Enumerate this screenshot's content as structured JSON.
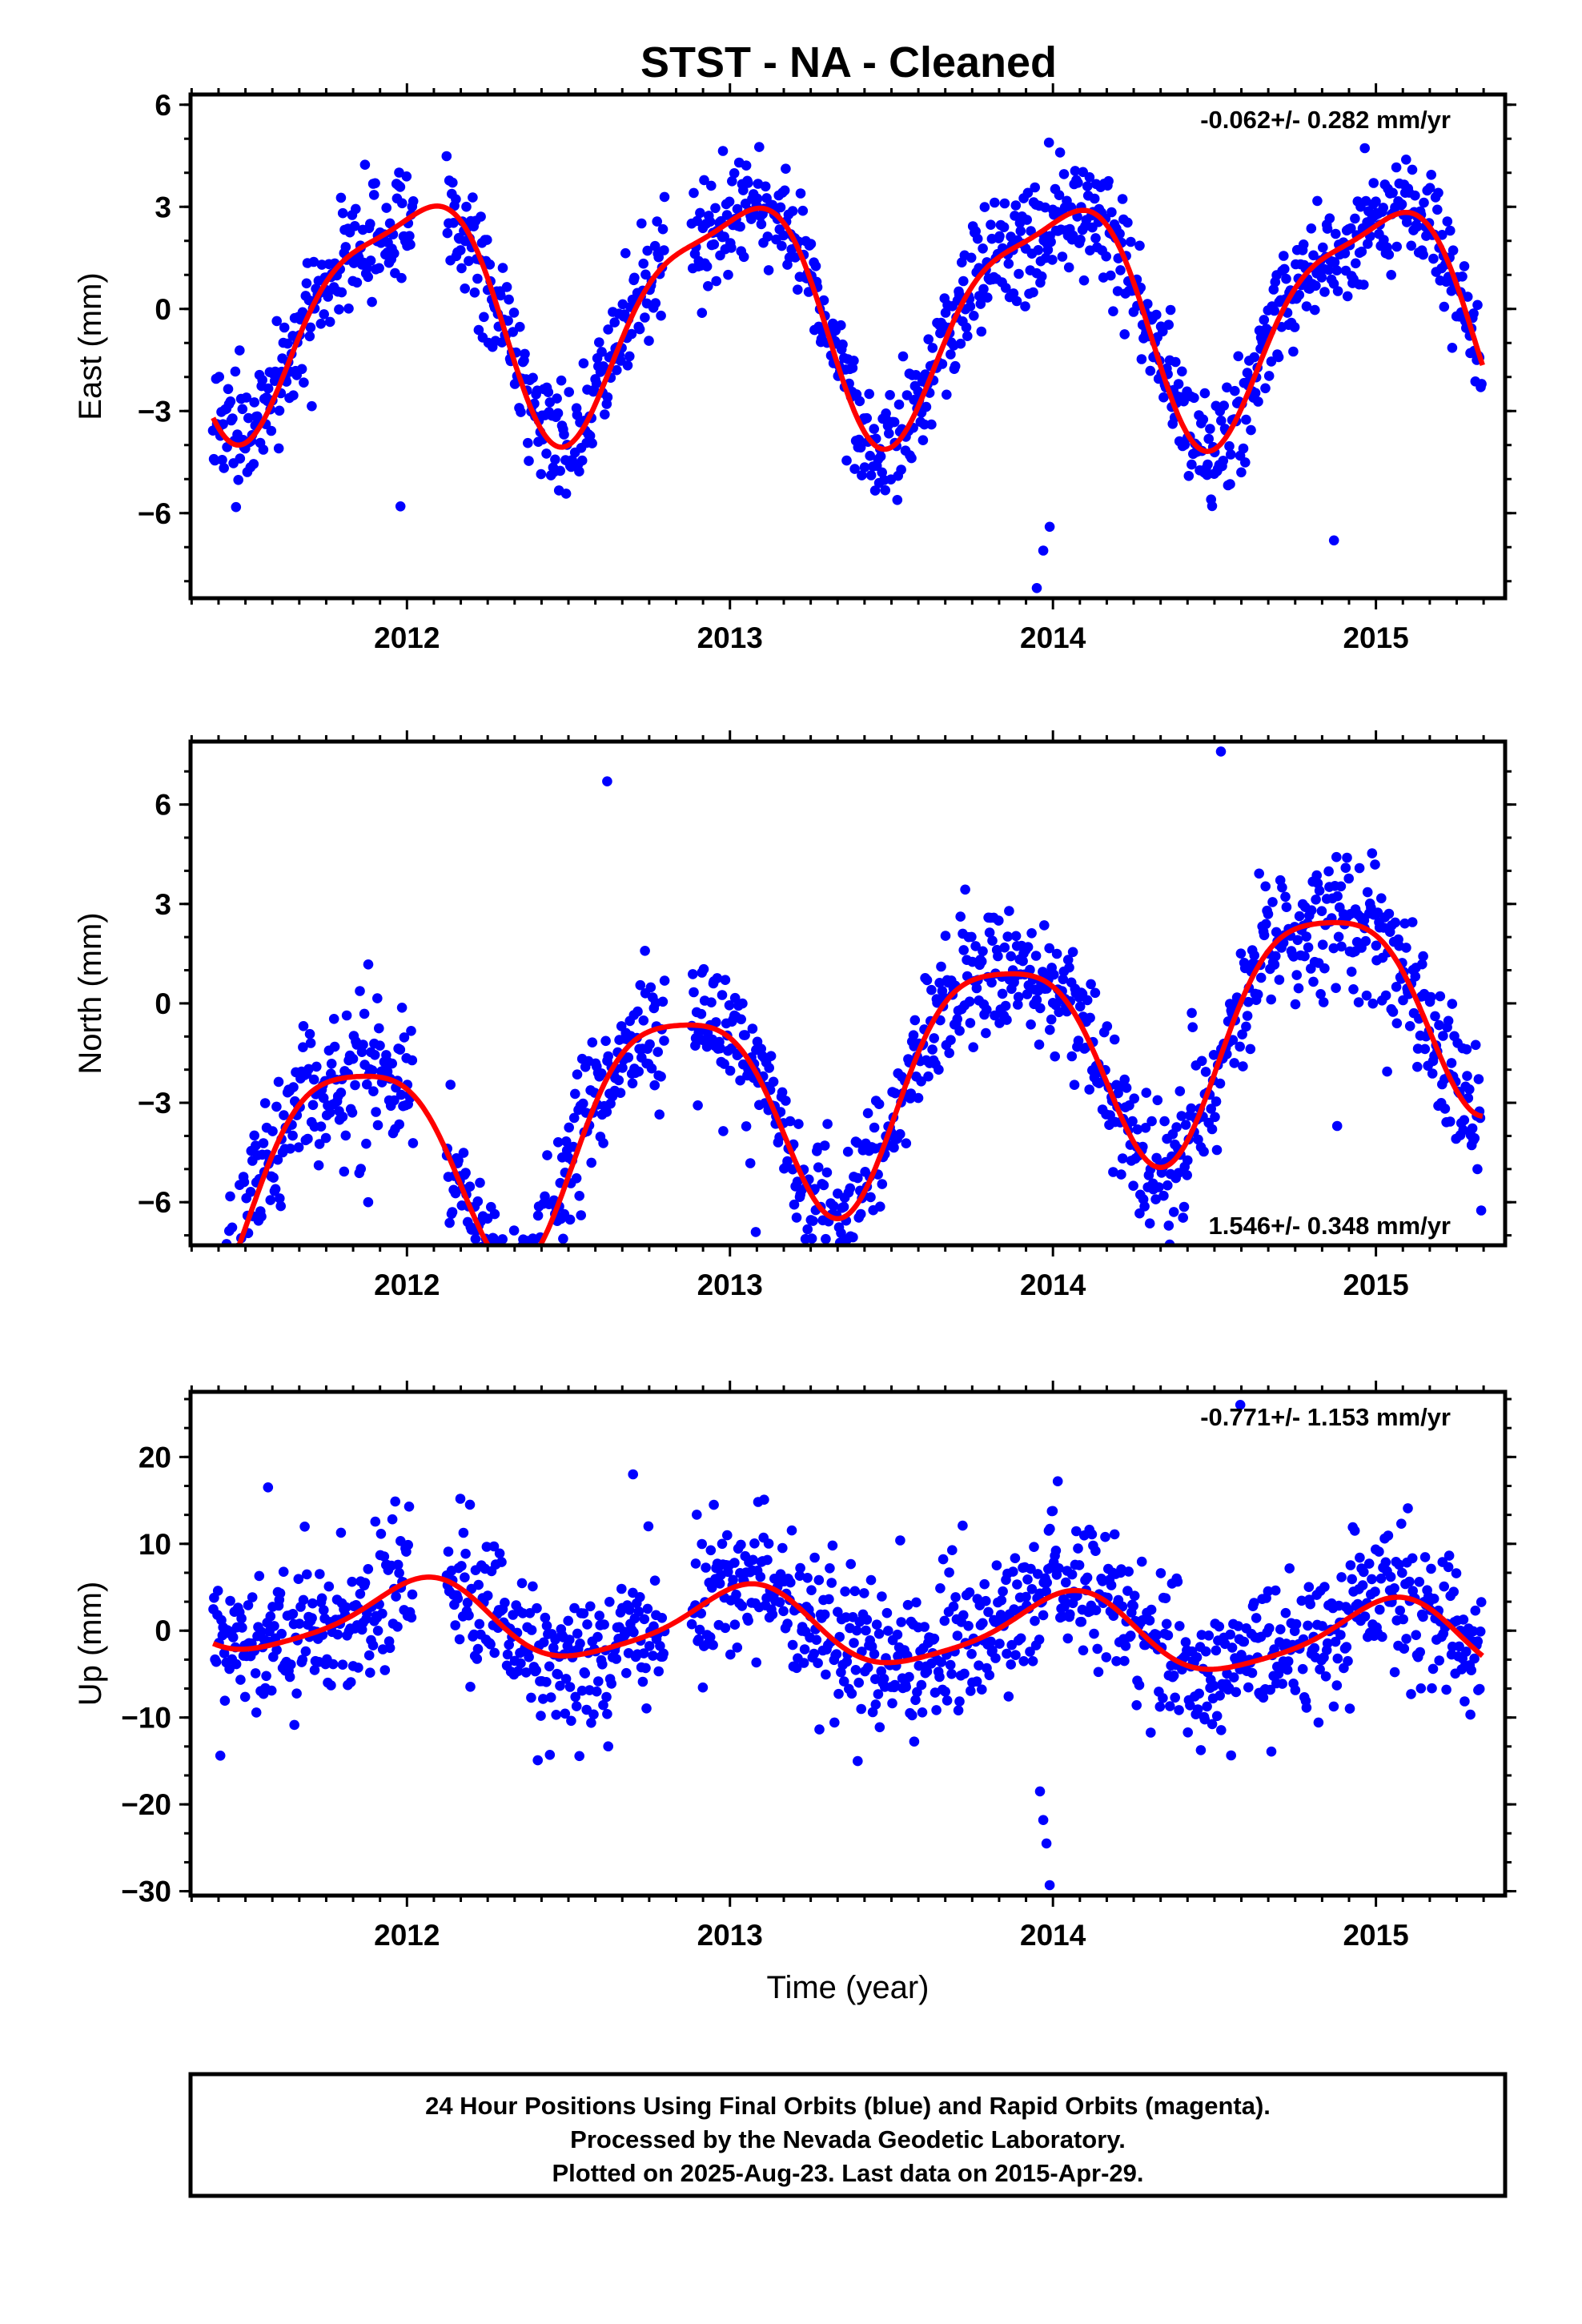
{
  "chart_data": [
    {
      "type": "scatter",
      "title": "STST  - NA - Cleaned",
      "ylabel": "East (mm)",
      "xlabel": "",
      "xlim": [
        2011.33,
        2015.4
      ],
      "ylim": [
        -8.5,
        6.3
      ],
      "xticks": [
        2012,
        2013,
        2014,
        2015
      ],
      "yticks": [
        -6,
        -3,
        0,
        3,
        6
      ],
      "rate_text": "-0.062+/- 0.282 mm/yr",
      "rate_position": "top-right",
      "grid": false,
      "series": [
        {
          "color": "#0000ff",
          "kind": "points",
          "start": 2011.4,
          "end": 2015.33,
          "trend": -0.062,
          "offset": 0,
          "amp1": 3.3,
          "phase1": 1.55,
          "amp2": 0.9,
          "phase2": -1.0,
          "noise": 0.85,
          "outliers": [
            [
              2013.95,
              -8.2
            ],
            [
              2013.97,
              -7.1
            ],
            [
              2013.99,
              -6.4
            ],
            [
              2014.87,
              -6.8
            ],
            [
              2011.98,
              -5.8
            ]
          ]
        },
        {
          "color": "#ff0000",
          "kind": "model",
          "start": 2011.4,
          "end": 2015.33,
          "trend": -0.062,
          "offset": 0,
          "amp1": 3.3,
          "phase1": 1.55,
          "amp2": 0.9,
          "phase2": -1.0
        }
      ]
    },
    {
      "type": "scatter",
      "title": "",
      "ylabel": "North (mm)",
      "xlabel": "",
      "xlim": [
        2011.33,
        2015.4
      ],
      "ylim": [
        -7.3,
        7.9
      ],
      "xticks": [
        2012,
        2013,
        2014,
        2015
      ],
      "yticks": [
        -6,
        -3,
        0,
        3,
        6
      ],
      "rate_text": "1.546+/- 0.348 mm/yr",
      "rate_position": "bottom-right",
      "grid": false,
      "series": [
        {
          "color": "#0000ff",
          "kind": "points",
          "start": 2011.4,
          "end": 2015.33,
          "trend": 1.546,
          "offset": -2.4,
          "amp1": 3.3,
          "phase1": 2.6,
          "amp2": 0.7,
          "phase2": 0.4,
          "noise": 1.05,
          "outliers": [
            [
              2012.62,
              6.7
            ],
            [
              2013.08,
              -6.9
            ],
            [
              2014.52,
              7.6
            ],
            [
              2014.88,
              -3.7
            ],
            [
              2011.88,
              -6.0
            ]
          ]
        },
        {
          "color": "#ff0000",
          "kind": "model",
          "start": 2011.4,
          "end": 2015.33,
          "trend": 1.546,
          "offset": -2.4,
          "amp1": 3.3,
          "phase1": 2.6,
          "amp2": 0.7,
          "phase2": 0.4
        }
      ]
    },
    {
      "type": "scatter",
      "title": "",
      "ylabel": "Up (mm)",
      "xlabel": "Time (year)",
      "xlim": [
        2011.33,
        2015.4
      ],
      "ylim": [
        -30.5,
        27.5
      ],
      "xticks": [
        2012,
        2013,
        2014,
        2015
      ],
      "yticks": [
        -30,
        -20,
        -10,
        0,
        10,
        20
      ],
      "rate_text": "-0.771+/- 1.153 mm/yr",
      "rate_position": "top-right",
      "grid": false,
      "series": [
        {
          "color": "#0000ff",
          "kind": "points",
          "start": 2011.4,
          "end": 2015.33,
          "trend": -0.771,
          "offset": 0.3,
          "amp1": 4.2,
          "phase1": 1.3,
          "amp2": 0.8,
          "phase2": 0.2,
          "noise": 4.3,
          "outliers": [
            [
              2013.99,
              -29.3
            ],
            [
              2013.98,
              -24.5
            ],
            [
              2013.97,
              -21.8
            ],
            [
              2013.96,
              -18.5
            ],
            [
              2014.58,
              26.0
            ],
            [
              2011.57,
              16.5
            ],
            [
              2012.7,
              18.0
            ]
          ]
        },
        {
          "color": "#ff0000",
          "kind": "model",
          "start": 2011.4,
          "end": 2015.33,
          "trend": -0.771,
          "offset": 0.3,
          "amp1": 4.2,
          "phase1": 1.3,
          "amp2": 0.8,
          "phase2": 0.2
        }
      ]
    }
  ],
  "caption": {
    "line1": "24 Hour Positions Using Final Orbits (blue) and Rapid Orbits (magenta).",
    "line2": "Processed by the Nevada Geodetic Laboratory.",
    "line3": "Plotted on 2025-Aug-23. Last data on 2015-Apr-29."
  }
}
